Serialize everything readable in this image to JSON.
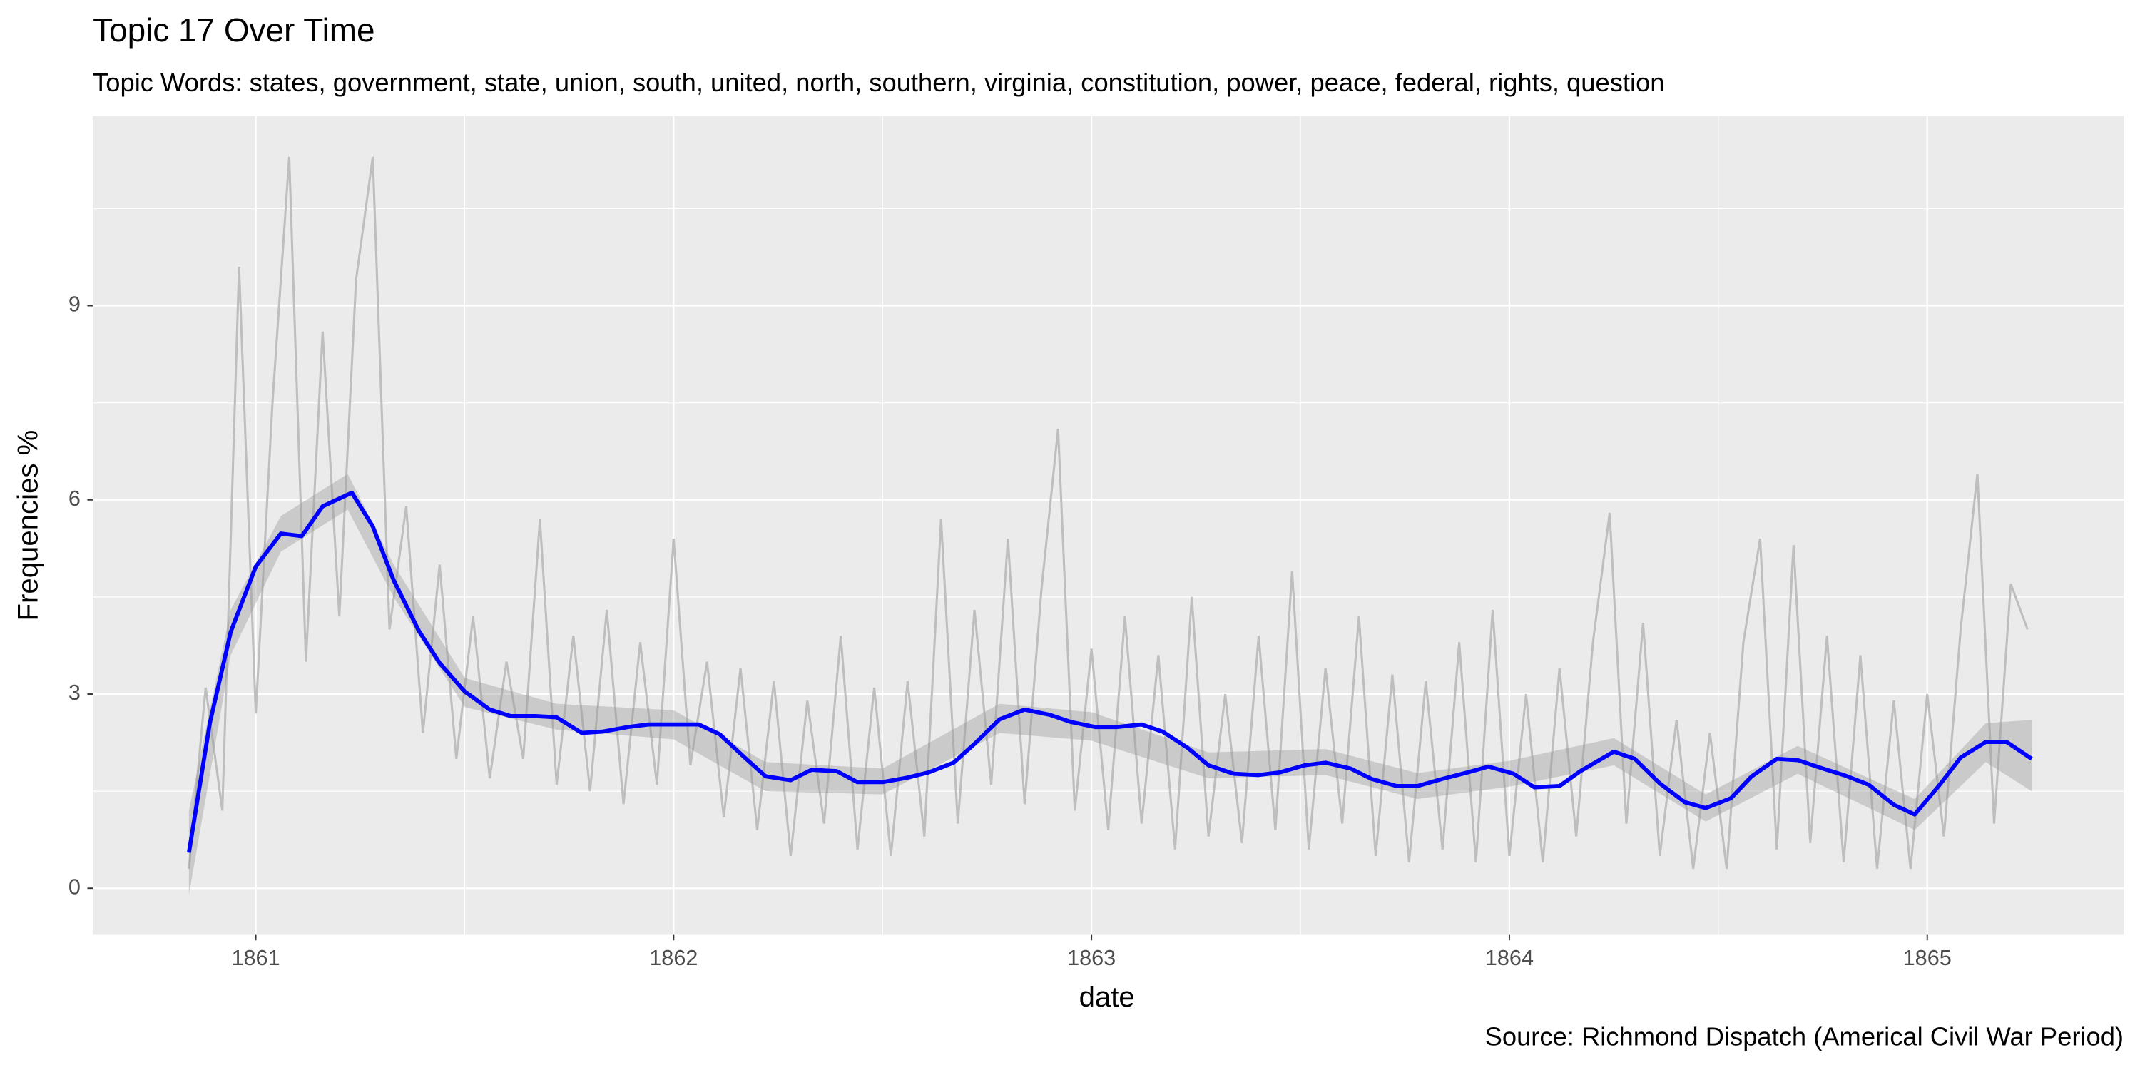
{
  "chart_data": {
    "type": "line",
    "title": "Topic 17 Over Time",
    "subtitle": "Topic Words: states, government, state, union, south, united, north, southern, virginia, constitution, power, peace, federal, rights, question",
    "xlabel": "date",
    "ylabel": "Frequencies %",
    "caption": "Source: Richmond Dispatch (Americal Civil War Period)",
    "xlim": [
      1860.61,
      1865.47
    ],
    "ylim": [
      -0.72,
      11.93
    ],
    "xticks": [
      1861,
      1862,
      1863,
      1864,
      1865
    ],
    "yticks": [
      0,
      3,
      6,
      9
    ],
    "grid": true,
    "series": [
      {
        "color": "#bebebe",
        "x": [
          1860.84,
          1860.88,
          1860.92,
          1860.96,
          1861.0,
          1861.04,
          1861.08,
          1861.12,
          1861.16,
          1861.2,
          1861.24,
          1861.28,
          1861.32,
          1861.36,
          1861.4,
          1861.44,
          1861.48,
          1861.52,
          1861.56,
          1861.6,
          1861.64,
          1861.68,
          1861.72,
          1861.76,
          1861.8,
          1861.84,
          1861.88,
          1861.92,
          1861.96,
          1862.0,
          1862.04,
          1862.08,
          1862.12,
          1862.16,
          1862.2,
          1862.24,
          1862.28,
          1862.32,
          1862.36,
          1862.4,
          1862.44,
          1862.48,
          1862.52,
          1862.56,
          1862.6,
          1862.64,
          1862.68,
          1862.72,
          1862.76,
          1862.8,
          1862.84,
          1862.88,
          1862.92,
          1862.96,
          1863.0,
          1863.04,
          1863.08,
          1863.12,
          1863.16,
          1863.2,
          1863.24,
          1863.28,
          1863.32,
          1863.36,
          1863.4,
          1863.44,
          1863.48,
          1863.52,
          1863.56,
          1863.6,
          1863.64,
          1863.68,
          1863.72,
          1863.76,
          1863.8,
          1863.84,
          1863.88,
          1863.92,
          1863.96,
          1864.0,
          1864.04,
          1864.08,
          1864.12,
          1864.16,
          1864.2,
          1864.24,
          1864.28,
          1864.32,
          1864.36,
          1864.4,
          1864.44,
          1864.48,
          1864.52,
          1864.56,
          1864.6,
          1864.64,
          1864.68,
          1864.72,
          1864.76,
          1864.8,
          1864.84,
          1864.88,
          1864.92,
          1864.96,
          1865.0,
          1865.04,
          1865.08,
          1865.12,
          1865.16,
          1865.2,
          1865.24
        ],
        "values": [
          0.3,
          3.1,
          1.2,
          9.6,
          2.7,
          7.5,
          11.3,
          3.5,
          8.6,
          4.2,
          9.4,
          11.3,
          4.0,
          5.9,
          2.4,
          5.0,
          2.0,
          4.2,
          1.7,
          3.5,
          2.0,
          5.7,
          1.6,
          3.9,
          1.5,
          4.3,
          1.3,
          3.8,
          1.6,
          5.4,
          1.9,
          3.5,
          1.1,
          3.4,
          0.9,
          3.2,
          0.5,
          2.9,
          1.0,
          3.9,
          0.6,
          3.1,
          0.5,
          3.2,
          0.8,
          5.7,
          1.0,
          4.3,
          1.6,
          5.4,
          1.3,
          4.6,
          7.1,
          1.2,
          3.7,
          0.9,
          4.2,
          1.0,
          3.6,
          0.6,
          4.5,
          0.8,
          3.0,
          0.7,
          3.9,
          0.9,
          4.9,
          0.6,
          3.4,
          1.0,
          4.2,
          0.5,
          3.3,
          0.4,
          3.2,
          0.6,
          3.8,
          0.4,
          4.3,
          0.5,
          3.0,
          0.4,
          3.4,
          0.8,
          3.8,
          5.8,
          1.0,
          4.1,
          0.5,
          2.6,
          0.3,
          2.4,
          0.3,
          3.8,
          5.4,
          0.6,
          5.3,
          0.7,
          3.9,
          0.4,
          3.6,
          0.3,
          2.9,
          0.3,
          3.0,
          0.8,
          4.0,
          6.4,
          1.0,
          4.7,
          4.0
        ]
      },
      {
        "color": "#0000ff",
        "x": [
          1860.84,
          1860.89,
          1860.94,
          1861.0,
          1861.06,
          1861.11,
          1861.16,
          1861.23,
          1861.28,
          1861.33,
          1861.39,
          1861.44,
          1861.5,
          1861.56,
          1861.61,
          1861.67,
          1861.72,
          1861.78,
          1861.83,
          1861.89,
          1861.94,
          1862.0,
          1862.06,
          1862.11,
          1862.17,
          1862.22,
          1862.28,
          1862.33,
          1862.39,
          1862.44,
          1862.5,
          1862.56,
          1862.61,
          1862.67,
          1862.72,
          1862.78,
          1862.84,
          1862.9,
          1862.95,
          1863.01,
          1863.06,
          1863.12,
          1863.17,
          1863.23,
          1863.28,
          1863.34,
          1863.4,
          1863.45,
          1863.51,
          1863.56,
          1863.62,
          1863.67,
          1863.73,
          1863.78,
          1863.84,
          1863.9,
          1863.95,
          1864.01,
          1864.06,
          1864.12,
          1864.17,
          1864.25,
          1864.3,
          1864.36,
          1864.42,
          1864.47,
          1864.53,
          1864.58,
          1864.64,
          1864.69,
          1864.75,
          1864.8,
          1864.86,
          1864.92,
          1864.97,
          1865.03,
          1865.08,
          1865.14,
          1865.19,
          1865.25
        ],
        "values": [
          0.55,
          2.55,
          3.96,
          4.97,
          5.48,
          5.44,
          5.9,
          6.11,
          5.59,
          4.76,
          3.98,
          3.48,
          3.04,
          2.76,
          2.66,
          2.66,
          2.64,
          2.4,
          2.42,
          2.49,
          2.53,
          2.53,
          2.53,
          2.38,
          2.02,
          1.73,
          1.67,
          1.83,
          1.81,
          1.64,
          1.64,
          1.71,
          1.79,
          1.94,
          2.23,
          2.61,
          2.76,
          2.68,
          2.57,
          2.49,
          2.49,
          2.53,
          2.42,
          2.17,
          1.9,
          1.77,
          1.75,
          1.79,
          1.9,
          1.94,
          1.85,
          1.69,
          1.58,
          1.58,
          1.69,
          1.79,
          1.88,
          1.77,
          1.56,
          1.58,
          1.81,
          2.11,
          2.0,
          1.62,
          1.33,
          1.24,
          1.39,
          1.73,
          2.0,
          1.98,
          1.85,
          1.75,
          1.6,
          1.29,
          1.14,
          1.6,
          2.02,
          2.26,
          2.26,
          2.0
        ]
      }
    ],
    "band": {
      "color": "#999999",
      "x": [
        1860.84,
        1860.94,
        1861.06,
        1861.22,
        1861.33,
        1861.5,
        1861.72,
        1862,
        1862.22,
        1862.5,
        1862.78,
        1863,
        1863.28,
        1863.56,
        1863.78,
        1864,
        1864.25,
        1864.47,
        1864.69,
        1864.97,
        1865.14,
        1865.25
      ],
      "lower": [
        -0.1,
        3.6,
        5.2,
        5.85,
        4.5,
        2.8,
        2.45,
        2.3,
        1.5,
        1.45,
        2.4,
        2.28,
        1.7,
        1.75,
        1.38,
        1.57,
        1.9,
        1.03,
        1.77,
        0.9,
        1.95,
        1.5
      ],
      "upper": [
        1.2,
        4.3,
        5.75,
        6.4,
        5.0,
        3.25,
        2.85,
        2.75,
        1.95,
        1.85,
        2.85,
        2.72,
        2.1,
        2.15,
        1.78,
        1.97,
        2.32,
        1.45,
        2.2,
        1.38,
        2.55,
        2.6
      ]
    }
  }
}
